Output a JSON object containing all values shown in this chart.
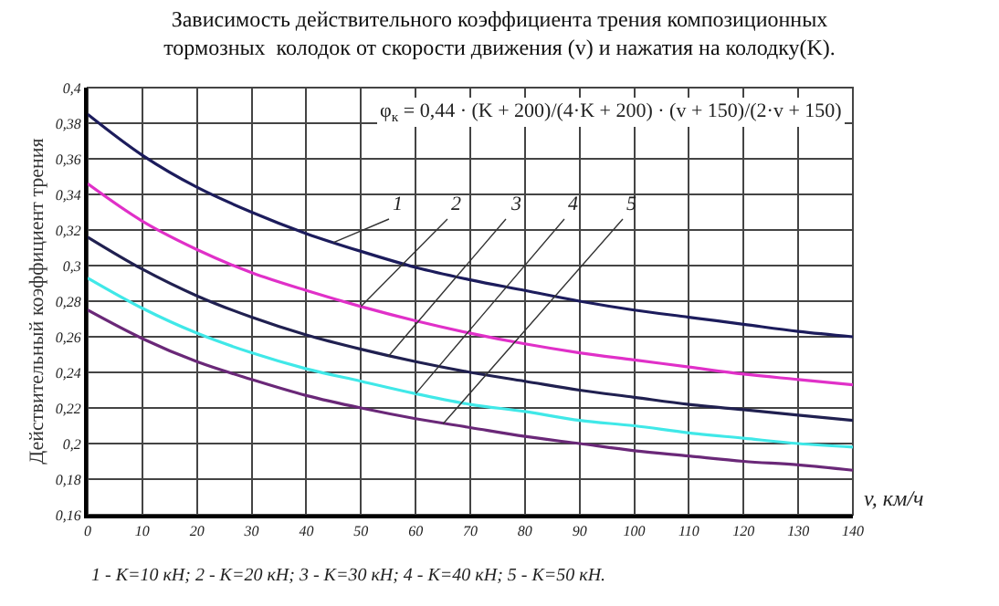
{
  "chart_data": {
    "type": "line",
    "title": "Зависимость действительного коэффициента трения композиционных\nтормозных  колодок от скорости движения (v) и нажатия на колодку(K).",
    "xlabel": "v, км/ч",
    "ylabel": "Действительный коэффициент трения",
    "x": [
      0,
      10,
      20,
      30,
      40,
      50,
      60,
      70,
      80,
      90,
      100,
      110,
      120,
      130,
      140
    ],
    "series": [
      {
        "color": "#1c1c5c",
        "values": [
          0.385,
          0.362,
          0.344,
          0.33,
          0.318,
          0.308,
          0.299,
          0.292,
          0.286,
          0.28,
          0.275,
          0.271,
          0.267,
          0.263,
          0.26
        ]
      },
      {
        "color": "#e030c8",
        "values": [
          0.346,
          0.325,
          0.309,
          0.296,
          0.286,
          0.277,
          0.269,
          0.262,
          0.256,
          0.251,
          0.247,
          0.243,
          0.239,
          0.236,
          0.233
        ]
      },
      {
        "color": "#202050",
        "values": [
          0.316,
          0.298,
          0.283,
          0.271,
          0.261,
          0.253,
          0.246,
          0.24,
          0.235,
          0.23,
          0.226,
          0.222,
          0.219,
          0.216,
          0.213
        ]
      },
      {
        "color": "#40e8e8",
        "values": [
          0.293,
          0.276,
          0.262,
          0.251,
          0.242,
          0.235,
          0.228,
          0.222,
          0.218,
          0.213,
          0.21,
          0.206,
          0.203,
          0.2,
          0.198
        ]
      },
      {
        "color": "#6a2878",
        "values": [
          0.275,
          0.259,
          0.246,
          0.236,
          0.227,
          0.22,
          0.214,
          0.209,
          0.204,
          0.2,
          0.196,
          0.193,
          0.19,
          0.188,
          0.185
        ]
      }
    ],
    "xlim": [
      0,
      140
    ],
    "xticks": [
      0,
      10,
      20,
      30,
      40,
      50,
      60,
      70,
      80,
      90,
      100,
      110,
      120,
      130,
      140
    ],
    "ylim": [
      0.16,
      0.4
    ],
    "yticks": [
      {
        "value": 0.16,
        "label": "0,16"
      },
      {
        "value": 0.18,
        "label": "0,18"
      },
      {
        "value": 0.2,
        "label": "0,2"
      },
      {
        "value": 0.22,
        "label": "0,22"
      },
      {
        "value": 0.24,
        "label": "0,24"
      },
      {
        "value": 0.26,
        "label": "0,26"
      },
      {
        "value": 0.28,
        "label": "0,28"
      },
      {
        "value": 0.3,
        "label": "0,3"
      },
      {
        "value": 0.32,
        "label": "0,32"
      },
      {
        "value": 0.34,
        "label": "0,34"
      },
      {
        "value": 0.36,
        "label": "0,36"
      },
      {
        "value": 0.38,
        "label": "0,38"
      },
      {
        "value": 0.4,
        "label": "0,4"
      }
    ],
    "annotations": [
      {
        "text": "1",
        "x": 45,
        "y": 0.313
      },
      {
        "text": "2",
        "x": 50,
        "y": 0.277
      },
      {
        "text": "3",
        "x": 55,
        "y": 0.249
      },
      {
        "text": "4",
        "x": 60,
        "y": 0.228
      },
      {
        "text": "5",
        "x": 65,
        "y": 0.211
      },
      "φ$_{к}$ = 0,44 · (K + 200)/(4·K + 200) · (v + 150)/(2·v + 150)",
      "1 - K=10 кН; 2 - K=20 кН; 3 - K=30 кН; 4 - K=40 кН; 5 - K=50 кН."
    ],
    "grid": true,
    "legend": false,
    "marker": "none",
    "line_style": "solid"
  }
}
